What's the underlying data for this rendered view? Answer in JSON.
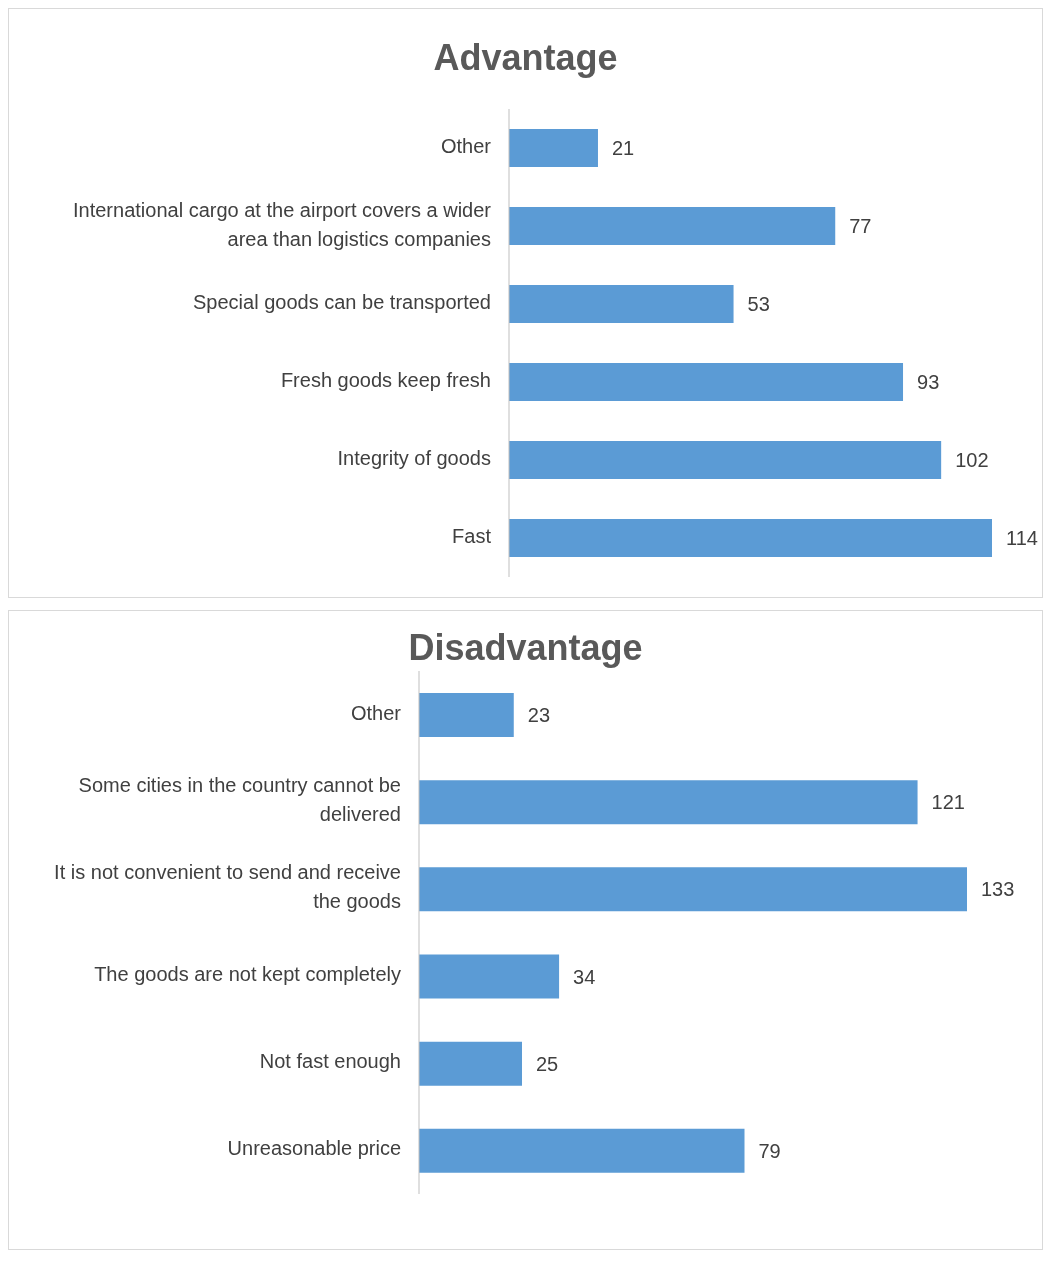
{
  "chart_data": [
    {
      "type": "bar",
      "orientation": "horizontal",
      "title": "Advantage",
      "categories": [
        "Other",
        "International cargo at the airport covers a wider area than logistics companies",
        "Special goods can be transported",
        "Fresh goods keep fresh",
        "Integrity of goods",
        "Fast"
      ],
      "values": [
        21,
        77,
        53,
        93,
        102,
        114
      ],
      "color": "#5b9bd5",
      "data_labels": true,
      "grid": false
    },
    {
      "type": "bar",
      "orientation": "horizontal",
      "title": "Disadvantage",
      "categories": [
        "Other",
        "Some cities in the country cannot be delivered",
        "It is not convenient to send and receive the goods",
        "The goods are not kept completely",
        "Not fast enough",
        "Unreasonable price"
      ],
      "values": [
        23,
        121,
        133,
        34,
        25,
        79
      ],
      "color": "#5b9bd5",
      "data_labels": true,
      "grid": false
    }
  ]
}
